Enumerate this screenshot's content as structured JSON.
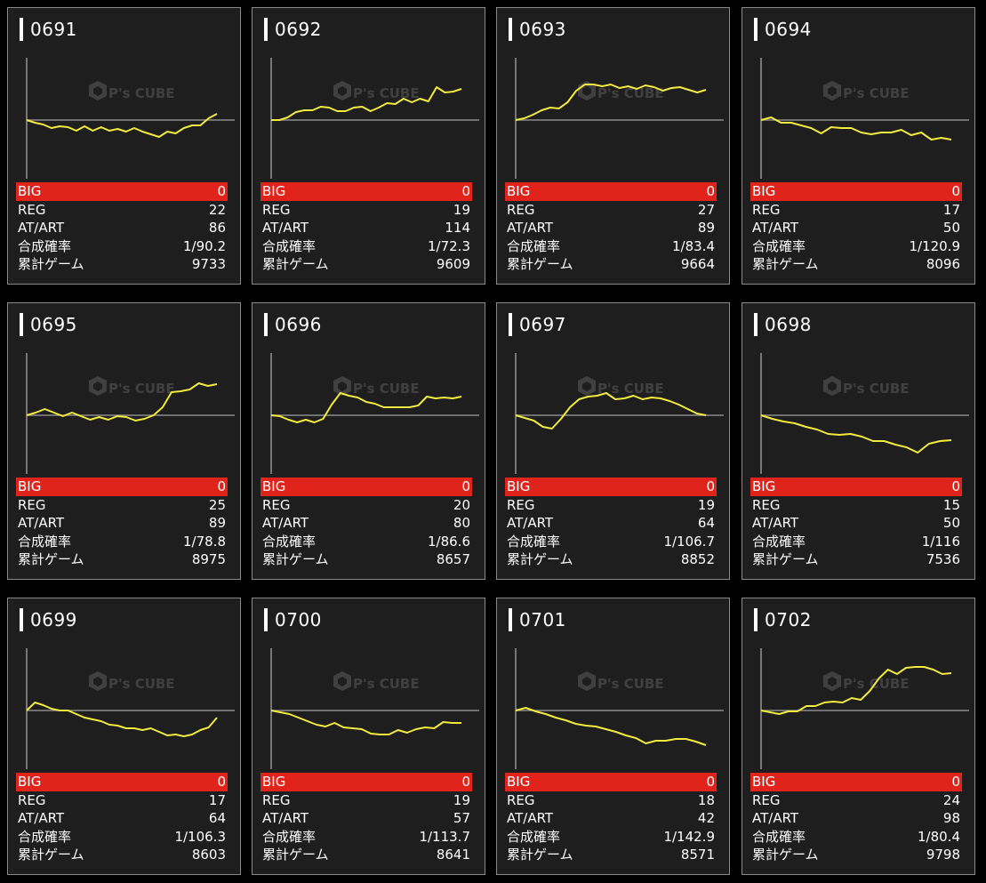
{
  "labels": {
    "big": "BIG",
    "reg": "REG",
    "at": "AT/ART",
    "rate": "合成確率",
    "games": "累計ゲーム"
  },
  "watermark": {
    "brand": "P's CUBE"
  },
  "colors": {
    "line": "#f2ea3c",
    "big_row": "#e0241b",
    "baseline": "#8c8c8c"
  },
  "machines": [
    {
      "id": "0691",
      "big": "0",
      "reg": "22",
      "at": "86",
      "rate": "1/90.2",
      "games": "9733",
      "chart_data": {
        "type": "line",
        "values": [
          0,
          -3,
          -5,
          -9,
          -7,
          -8,
          -12,
          -7,
          -12,
          -8,
          -12,
          -10,
          -13,
          -9,
          -13,
          -16,
          -19,
          -13,
          -15,
          -9,
          -6,
          -6,
          2,
          7
        ]
      }
    },
    {
      "id": "0692",
      "big": "0",
      "reg": "19",
      "at": "114",
      "rate": "1/72.3",
      "games": "9609",
      "chart_data": {
        "type": "line",
        "values": [
          0,
          0,
          3,
          9,
          11,
          11,
          15,
          14,
          10,
          10,
          14,
          15,
          10,
          14,
          19,
          18,
          24,
          20,
          24,
          21,
          37,
          31,
          32,
          35
        ]
      }
    },
    {
      "id": "0693",
      "big": "0",
      "reg": "27",
      "at": "89",
      "rate": "1/83.4",
      "games": "9664",
      "chart_data": {
        "type": "line",
        "values": [
          0,
          2,
          6,
          11,
          14,
          13,
          20,
          33,
          40,
          40,
          38,
          40,
          36,
          38,
          35,
          39,
          37,
          33,
          36,
          37,
          34,
          31,
          34
        ]
      }
    },
    {
      "id": "0694",
      "big": "0",
      "reg": "17",
      "at": "50",
      "rate": "1/120.9",
      "games": "8096",
      "chart_data": {
        "type": "line",
        "values": [
          0,
          3,
          -3,
          -3,
          -6,
          -9,
          -15,
          -8,
          -9,
          -9,
          -14,
          -16,
          -14,
          -14,
          -11,
          -17,
          -14,
          -22,
          -20,
          -22
        ]
      }
    },
    {
      "id": "0695",
      "big": "0",
      "reg": "25",
      "at": "89",
      "rate": "1/78.8",
      "games": "8975",
      "chart_data": {
        "type": "line",
        "values": [
          0,
          3,
          7,
          3,
          -1,
          3,
          -1,
          -5,
          -2,
          -5,
          -1,
          -2,
          -6,
          -4,
          0,
          9,
          26,
          27,
          29,
          36,
          33,
          35
        ]
      }
    },
    {
      "id": "0696",
      "big": "0",
      "reg": "20",
      "at": "80",
      "rate": "1/86.6",
      "games": "8657",
      "chart_data": {
        "type": "line",
        "values": [
          0,
          -1,
          -5,
          -8,
          -5,
          -8,
          -4,
          12,
          25,
          22,
          20,
          15,
          13,
          9,
          9,
          9,
          9,
          11,
          21,
          19,
          20,
          19,
          21
        ]
      }
    },
    {
      "id": "0697",
      "big": "0",
      "reg": "19",
      "at": "64",
      "rate": "1/106.7",
      "games": "8852",
      "chart_data": {
        "type": "line",
        "values": [
          0,
          -3,
          -6,
          -13,
          -15,
          -4,
          9,
          18,
          21,
          22,
          25,
          18,
          19,
          22,
          18,
          20,
          19,
          16,
          12,
          7,
          2,
          0
        ]
      }
    },
    {
      "id": "0698",
      "big": "0",
      "reg": "15",
      "at": "50",
      "rate": "1/116",
      "games": "7536",
      "chart_data": {
        "type": "line",
        "values": [
          0,
          -4,
          -7,
          -9,
          -13,
          -16,
          -21,
          -22,
          -21,
          -24,
          -29,
          -29,
          -33,
          -36,
          -42,
          -32,
          -29,
          -28
        ]
      }
    },
    {
      "id": "0699",
      "big": "0",
      "reg": "17",
      "at": "64",
      "rate": "1/106.3",
      "games": "8603",
      "chart_data": {
        "type": "line",
        "values": [
          0,
          9,
          6,
          2,
          0,
          0,
          -4,
          -8,
          -10,
          -12,
          -16,
          -17,
          -20,
          -20,
          -22,
          -20,
          -24,
          -28,
          -27,
          -29,
          -27,
          -22,
          -19,
          -8
        ]
      }
    },
    {
      "id": "0700",
      "big": "0",
      "reg": "19",
      "at": "57",
      "rate": "1/113.7",
      "games": "8641",
      "chart_data": {
        "type": "line",
        "values": [
          0,
          -2,
          -4,
          -8,
          -12,
          -16,
          -18,
          -14,
          -19,
          -20,
          -21,
          -26,
          -27,
          -27,
          -22,
          -25,
          -21,
          -19,
          -20,
          -13,
          -14,
          -14
        ]
      }
    },
    {
      "id": "0701",
      "big": "0",
      "reg": "18",
      "at": "42",
      "rate": "1/142.9",
      "games": "8571",
      "chart_data": {
        "type": "line",
        "values": [
          0,
          3,
          -1,
          -4,
          -8,
          -11,
          -15,
          -17,
          -18,
          -21,
          -24,
          -28,
          -31,
          -37,
          -34,
          -34,
          -32,
          -32,
          -35,
          -39
        ]
      }
    },
    {
      "id": "0702",
      "big": "0",
      "reg": "24",
      "at": "98",
      "rate": "1/80.4",
      "games": "9798",
      "chart_data": {
        "type": "line",
        "values": [
          0,
          -2,
          -4,
          -1,
          -1,
          5,
          5,
          9,
          10,
          9,
          14,
          12,
          22,
          36,
          46,
          41,
          48,
          49,
          49,
          46,
          41,
          42
        ]
      }
    }
  ]
}
